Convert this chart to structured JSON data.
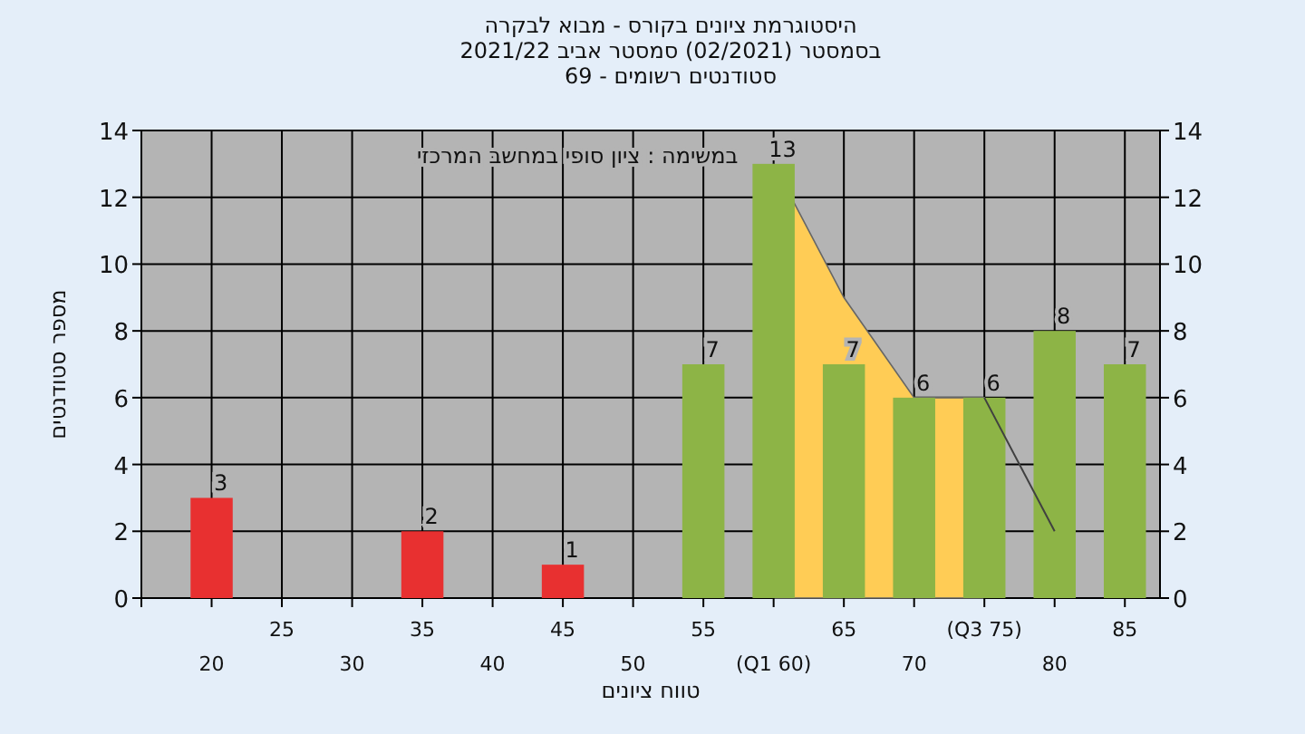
{
  "chart_data": {
    "type": "bar",
    "title": "היסטוגרמת ציונים בקורס - מבוא לבקרה",
    "subtitle": "בסמסטר (02/2021) סמסטר אביב 2021/22\nסטודנטים רשומים - 69",
    "xlabel": "טווח ציונים",
    "ylabel": "מספר סטודנטים",
    "annotations": [
      "במשימה : ציון סופי במחשב המרכזי"
    ],
    "categories": [
      "20",
      "25",
      "30",
      "35",
      "40",
      "45",
      "50",
      "55",
      "(Q1 60)",
      "65",
      "70",
      "(Q3 75)",
      "80",
      "85"
    ],
    "series": [
      {
        "type": "area",
        "color": "#ffcc55",
        "values": [
          null,
          null,
          null,
          null,
          null,
          null,
          null,
          null,
          13,
          9,
          6,
          6,
          null,
          null
        ]
      },
      {
        "type": "line",
        "color": "#404040",
        "values": [
          null,
          null,
          null,
          null,
          null,
          null,
          null,
          null,
          null,
          null,
          null,
          6,
          2,
          null
        ]
      },
      {
        "colors": [
          "#e83030",
          "#e83030",
          "#e83030",
          "#e83030",
          "#e83030",
          "#e83030",
          "#e83030",
          "#8db446",
          "#8db446",
          "#8db446",
          "#8db446",
          "#8db446",
          "#8db446",
          "#8db446"
        ],
        "values": [
          3,
          0,
          0,
          2,
          0,
          1,
          0,
          7,
          13,
          7,
          6,
          6,
          8,
          7
        ],
        "value_labels": [
          "3",
          null,
          null,
          "2",
          null,
          "1",
          null,
          "7",
          "13",
          "7",
          "6",
          "6",
          "8",
          "7"
        ]
      }
    ],
    "ylim": [
      0,
      14
    ],
    "yticks": [
      0,
      2,
      4,
      6,
      8,
      10,
      12,
      14
    ],
    "y2lim": [
      0,
      14
    ],
    "y2ticks": [
      0,
      2,
      4,
      6,
      8,
      10,
      12,
      14
    ],
    "grid": true
  }
}
